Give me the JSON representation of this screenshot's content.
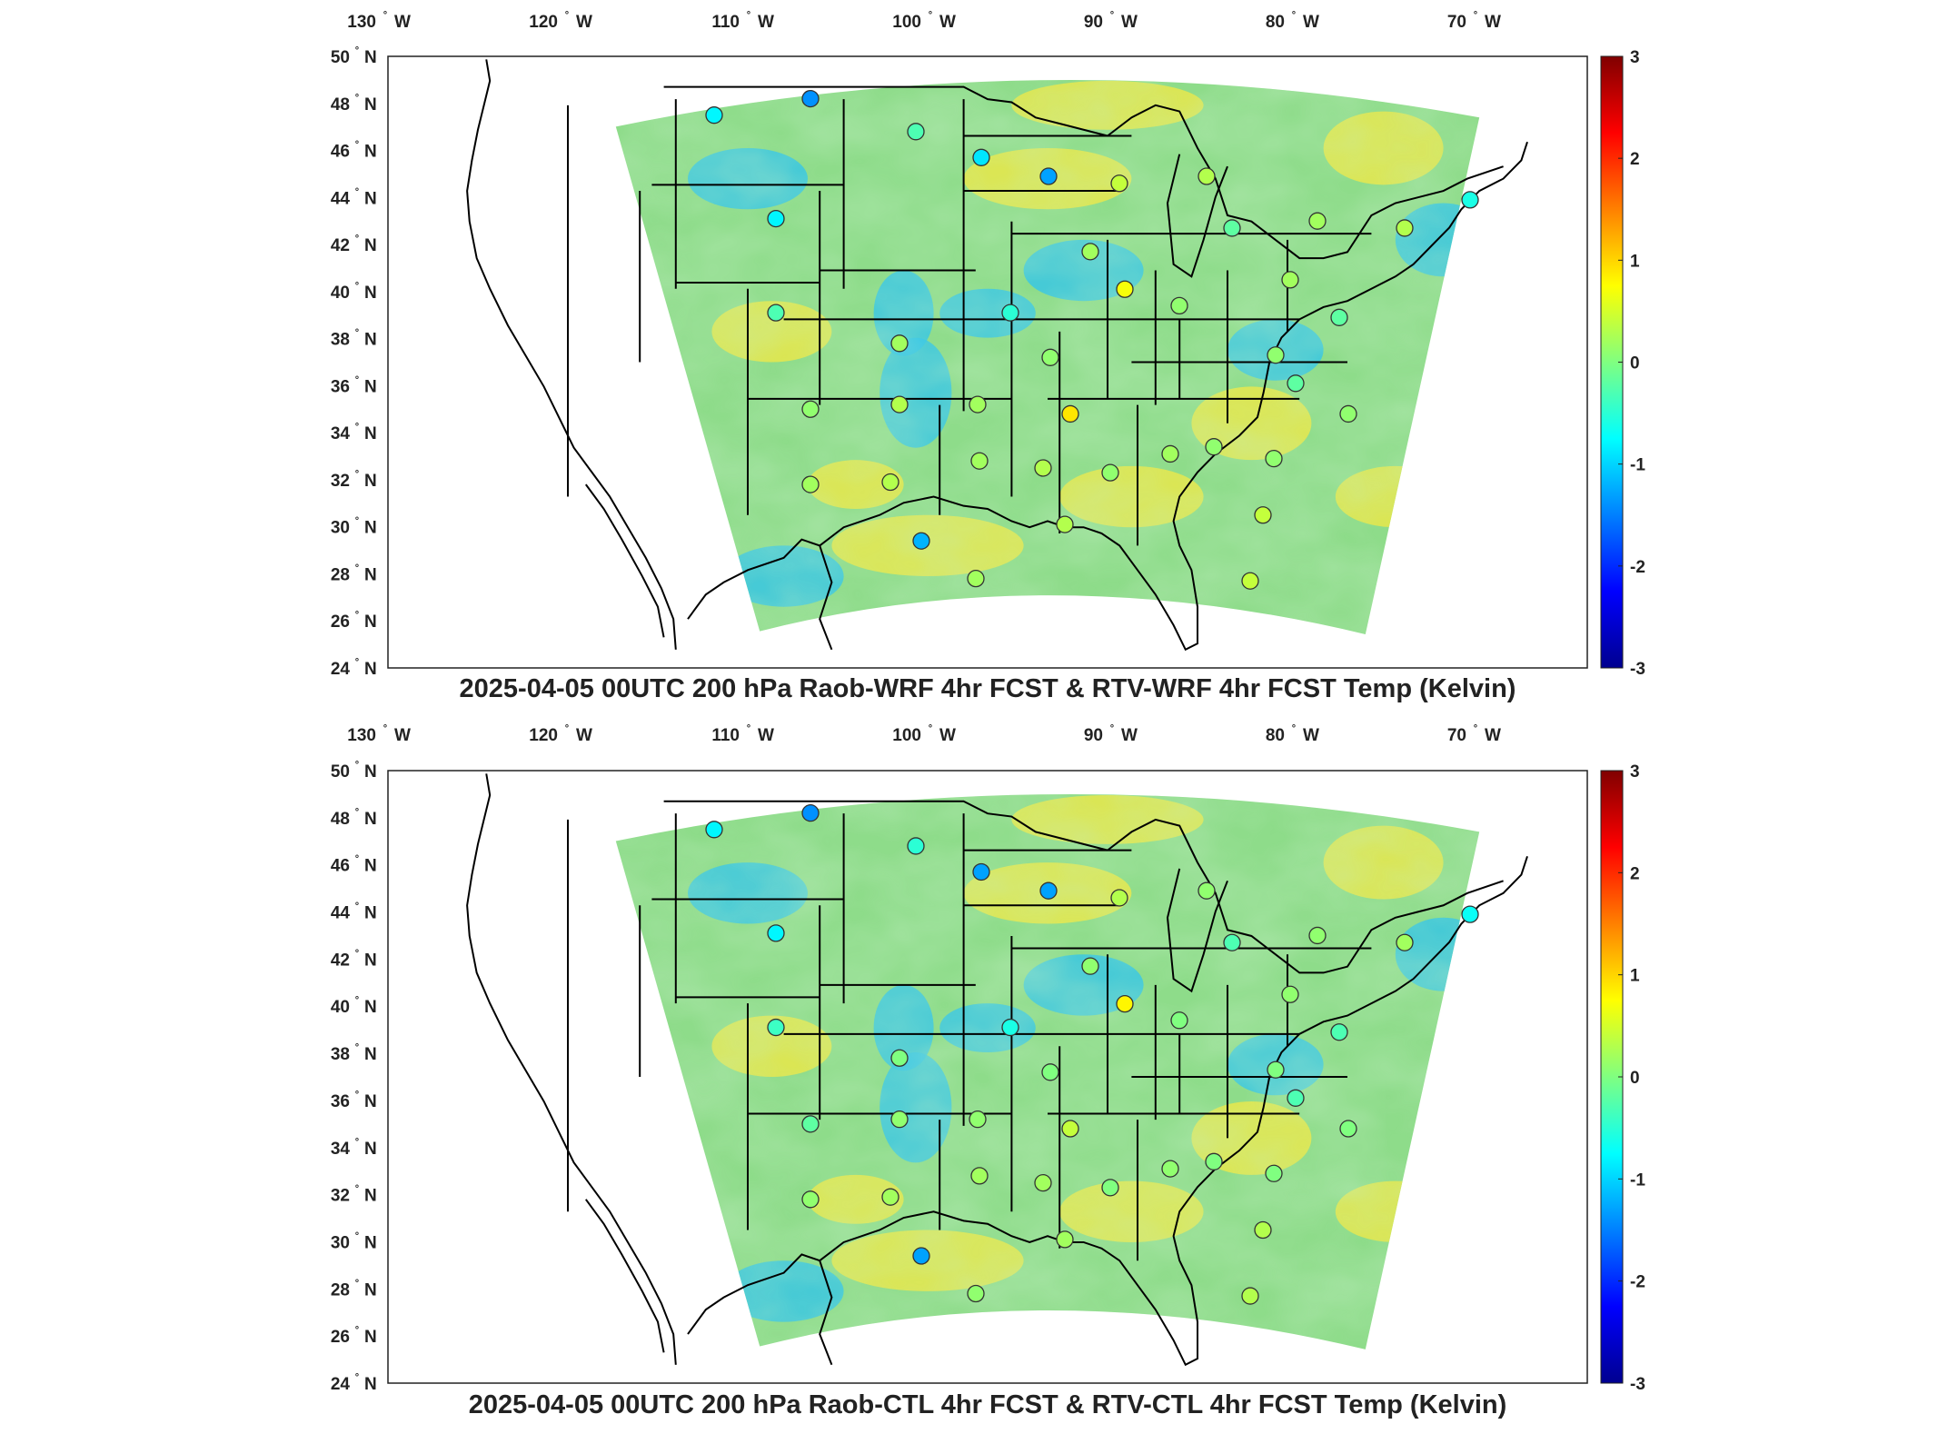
{
  "colors": {
    "colormap": [
      "#00008f",
      "#0000ff",
      "#0080ff",
      "#00ffff",
      "#80ff80",
      "#ffff00",
      "#ff8000",
      "#ff0000",
      "#800000"
    ],
    "field_mid": "#8edc8a",
    "field_warm": "#e9e84a",
    "field_cool": "#35c6e8",
    "border": "#000000"
  },
  "panels": [
    {
      "title": "2025-04-05 00UTC 200 hPa Raob-WRF 4hr FCST & RTV-WRF 4hr FCST Temp (Kelvin)",
      "lon_ticks": [
        "130",
        "120",
        "110",
        "100",
        "90",
        "80",
        "70"
      ],
      "lat_ticks": [
        "50",
        "48",
        "46",
        "44",
        "42",
        "40",
        "38",
        "36",
        "34",
        "32",
        "30",
        "28",
        "26",
        "24"
      ],
      "lon_suffix": "W",
      "lat_suffix": "N",
      "colorbar": {
        "min": -3,
        "max": 3,
        "ticks": [
          "3",
          "2",
          "1",
          "0",
          "-1",
          "-2",
          "-3"
        ]
      },
      "stations": [
        {
          "lon": -111.9,
          "lat": 47.5,
          "v": -0.8
        },
        {
          "lon": -106.6,
          "lat": 48.2,
          "v": -1.4
        },
        {
          "lon": -100.8,
          "lat": 46.8,
          "v": -0.3
        },
        {
          "lon": -97.2,
          "lat": 45.7,
          "v": -0.9
        },
        {
          "lon": -93.5,
          "lat": 44.9,
          "v": -1.3
        },
        {
          "lon": -108.5,
          "lat": 43.1,
          "v": -0.8
        },
        {
          "lon": -89.6,
          "lat": 44.6,
          "v": 0.4
        },
        {
          "lon": -84.8,
          "lat": 44.9,
          "v": 0.3
        },
        {
          "lon": -83.4,
          "lat": 42.7,
          "v": -0.2
        },
        {
          "lon": -78.7,
          "lat": 43.0,
          "v": 0.2
        },
        {
          "lon": -73.9,
          "lat": 42.7,
          "v": 0.3
        },
        {
          "lon": -70.3,
          "lat": 43.9,
          "v": -0.6
        },
        {
          "lon": -91.2,
          "lat": 41.7,
          "v": 0.2
        },
        {
          "lon": -89.3,
          "lat": 40.1,
          "v": 0.7
        },
        {
          "lon": -80.2,
          "lat": 40.5,
          "v": 0.2
        },
        {
          "lon": -86.3,
          "lat": 39.4,
          "v": 0.1
        },
        {
          "lon": -77.5,
          "lat": 38.9,
          "v": -0.2
        },
        {
          "lon": -108.5,
          "lat": 39.1,
          "v": -0.3
        },
        {
          "lon": -101.7,
          "lat": 37.8,
          "v": 0.2
        },
        {
          "lon": -95.6,
          "lat": 39.1,
          "v": -0.5
        },
        {
          "lon": -93.4,
          "lat": 37.2,
          "v": 0.1
        },
        {
          "lon": -81.0,
          "lat": 37.3,
          "v": 0.1
        },
        {
          "lon": -79.9,
          "lat": 36.1,
          "v": -0.2
        },
        {
          "lon": -106.6,
          "lat": 35.0,
          "v": 0.1
        },
        {
          "lon": -101.7,
          "lat": 35.2,
          "v": 0.3
        },
        {
          "lon": -97.4,
          "lat": 35.2,
          "v": 0.2
        },
        {
          "lon": -92.3,
          "lat": 34.8,
          "v": 0.9
        },
        {
          "lon": -77.0,
          "lat": 34.8,
          "v": 0.1
        },
        {
          "lon": -97.3,
          "lat": 32.8,
          "v": 0.2
        },
        {
          "lon": -93.8,
          "lat": 32.5,
          "v": 0.3
        },
        {
          "lon": -90.1,
          "lat": 32.3,
          "v": 0.1
        },
        {
          "lon": -86.8,
          "lat": 33.1,
          "v": 0.2
        },
        {
          "lon": -84.4,
          "lat": 33.4,
          "v": 0.1
        },
        {
          "lon": -81.1,
          "lat": 32.9,
          "v": 0.1
        },
        {
          "lon": -106.6,
          "lat": 31.8,
          "v": 0.2
        },
        {
          "lon": -102.2,
          "lat": 31.9,
          "v": 0.3
        },
        {
          "lon": -100.5,
          "lat": 29.4,
          "v": -1.2
        },
        {
          "lon": -92.6,
          "lat": 30.1,
          "v": 0.3
        },
        {
          "lon": -81.7,
          "lat": 30.5,
          "v": 0.4
        },
        {
          "lon": -97.5,
          "lat": 27.8,
          "v": 0.2
        },
        {
          "lon": -82.4,
          "lat": 27.7,
          "v": 0.4
        }
      ]
    },
    {
      "title": "2025-04-05 00UTC 200 hPa Raob-CTL 4hr FCST & RTV-CTL 4hr FCST Temp (Kelvin)",
      "lon_ticks": [
        "130",
        "120",
        "110",
        "100",
        "90",
        "80",
        "70"
      ],
      "lat_ticks": [
        "50",
        "48",
        "46",
        "44",
        "42",
        "40",
        "38",
        "36",
        "34",
        "32",
        "30",
        "28",
        "26",
        "24"
      ],
      "lon_suffix": "W",
      "lat_suffix": "N",
      "colorbar": {
        "min": -3,
        "max": 3,
        "ticks": [
          "3",
          "2",
          "1",
          "0",
          "-1",
          "-2",
          "-3"
        ]
      },
      "stations": [
        {
          "lon": -111.9,
          "lat": 47.5,
          "v": -0.8
        },
        {
          "lon": -106.6,
          "lat": 48.2,
          "v": -1.4
        },
        {
          "lon": -100.8,
          "lat": 46.8,
          "v": -0.5
        },
        {
          "lon": -97.2,
          "lat": 45.7,
          "v": -1.3
        },
        {
          "lon": -93.5,
          "lat": 44.9,
          "v": -1.3
        },
        {
          "lon": -108.5,
          "lat": 43.1,
          "v": -0.8
        },
        {
          "lon": -89.6,
          "lat": 44.6,
          "v": 0.3
        },
        {
          "lon": -84.8,
          "lat": 44.9,
          "v": 0.1
        },
        {
          "lon": -83.4,
          "lat": 42.7,
          "v": -0.3
        },
        {
          "lon": -78.7,
          "lat": 43.0,
          "v": 0.1
        },
        {
          "lon": -73.9,
          "lat": 42.7,
          "v": 0.2
        },
        {
          "lon": -70.3,
          "lat": 43.9,
          "v": -0.7
        },
        {
          "lon": -91.2,
          "lat": 41.7,
          "v": 0.1
        },
        {
          "lon": -89.3,
          "lat": 40.1,
          "v": 0.8
        },
        {
          "lon": -80.2,
          "lat": 40.5,
          "v": 0.1
        },
        {
          "lon": -86.3,
          "lat": 39.4,
          "v": 0.0
        },
        {
          "lon": -77.5,
          "lat": 38.9,
          "v": -0.3
        },
        {
          "lon": -108.5,
          "lat": 39.1,
          "v": -0.4
        },
        {
          "lon": -101.7,
          "lat": 37.8,
          "v": 0.0
        },
        {
          "lon": -95.6,
          "lat": 39.1,
          "v": -0.6
        },
        {
          "lon": -93.4,
          "lat": 37.2,
          "v": 0.0
        },
        {
          "lon": -81.0,
          "lat": 37.3,
          "v": 0.0
        },
        {
          "lon": -79.9,
          "lat": 36.1,
          "v": -0.3
        },
        {
          "lon": -106.6,
          "lat": 35.0,
          "v": -0.2
        },
        {
          "lon": -101.7,
          "lat": 35.2,
          "v": 0.1
        },
        {
          "lon": -97.4,
          "lat": 35.2,
          "v": 0.1
        },
        {
          "lon": -92.3,
          "lat": 34.8,
          "v": 0.4
        },
        {
          "lon": -77.0,
          "lat": 34.8,
          "v": 0.0
        },
        {
          "lon": -97.3,
          "lat": 32.8,
          "v": 0.2
        },
        {
          "lon": -93.8,
          "lat": 32.5,
          "v": 0.2
        },
        {
          "lon": -90.1,
          "lat": 32.3,
          "v": 0.0
        },
        {
          "lon": -86.8,
          "lat": 33.1,
          "v": 0.1
        },
        {
          "lon": -84.4,
          "lat": 33.4,
          "v": 0.0
        },
        {
          "lon": -81.1,
          "lat": 32.9,
          "v": 0.0
        },
        {
          "lon": -106.6,
          "lat": 31.8,
          "v": 0.1
        },
        {
          "lon": -102.2,
          "lat": 31.9,
          "v": 0.2
        },
        {
          "lon": -100.5,
          "lat": 29.4,
          "v": -1.3
        },
        {
          "lon": -92.6,
          "lat": 30.1,
          "v": 0.2
        },
        {
          "lon": -81.7,
          "lat": 30.5,
          "v": 0.3
        },
        {
          "lon": -97.5,
          "lat": 27.8,
          "v": 0.1
        },
        {
          "lon": -82.4,
          "lat": 27.7,
          "v": 0.3
        }
      ]
    }
  ]
}
